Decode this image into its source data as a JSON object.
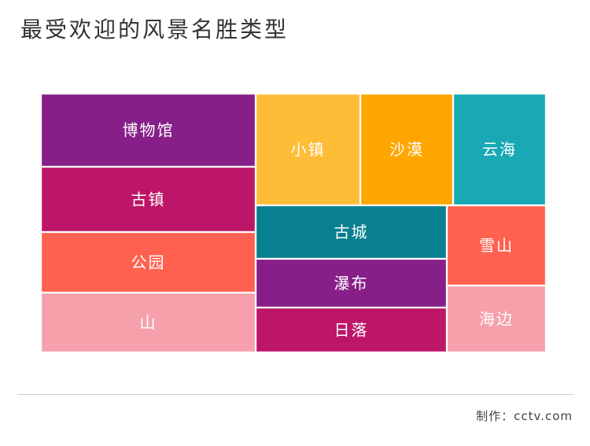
{
  "title": "最受欢迎的风景名胜类型",
  "credit": "制作：cctv.com",
  "chart_data": {
    "type": "treemap",
    "title": "最受欢迎的风景名胜类型",
    "items": [
      {
        "label": "博物馆",
        "color": "#861f88"
      },
      {
        "label": "古镇",
        "color": "#bd1668"
      },
      {
        "label": "公园",
        "color": "#ff6150"
      },
      {
        "label": "山",
        "color": "#f5a0ab"
      },
      {
        "label": "小镇",
        "color": "#febd37"
      },
      {
        "label": "沙漠",
        "color": "#ffa601"
      },
      {
        "label": "云海",
        "color": "#18a9b4"
      },
      {
        "label": "古城",
        "color": "#088090"
      },
      {
        "label": "瀑布",
        "color": "#861f88"
      },
      {
        "label": "日落",
        "color": "#bd1668"
      },
      {
        "label": "雪山",
        "color": "#ff6150"
      },
      {
        "label": "海边",
        "color": "#f5a0ab"
      }
    ]
  }
}
